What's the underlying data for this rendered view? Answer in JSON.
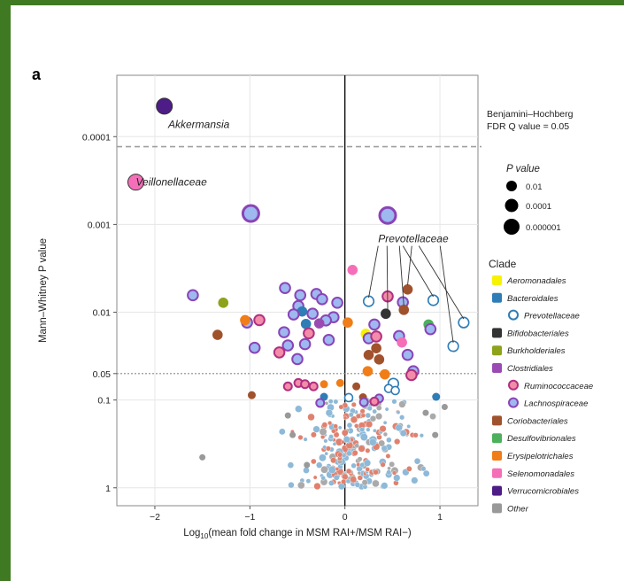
{
  "chart_data": {
    "type": "scatter",
    "panel_label": "a",
    "xlabel_prefix": "Log",
    "xlabel_sub": "10",
    "xlabel_rest": "(mean fold change in MSM RAI+/MSM RAI−)",
    "ylabel": "Mann–Whitney P value",
    "x_ticks": [
      "−2",
      "−1",
      "0",
      "1"
    ],
    "x_tick_values": [
      -2,
      -1,
      0,
      1
    ],
    "y_ticks": [
      "0.0001",
      "0.001",
      "0.01",
      "0.05",
      "0.1",
      "1"
    ],
    "y_tick_values": [
      0.0001,
      0.001,
      0.01,
      0.05,
      0.1,
      1
    ],
    "xlim": [
      -2.4,
      1.4
    ],
    "ylim_p": [
      2e-05,
      1.6
    ],
    "y_scale": "log (reversed)",
    "threshold_bh": {
      "p": 0.00013,
      "label_line1": "Benjamini–Hochberg",
      "label_line2": "FDR Q value = 0.05"
    },
    "threshold_p": 0.05,
    "pvalue_legend": {
      "title": "P value",
      "items": [
        "0.01",
        "0.0001",
        "0.000001"
      ]
    },
    "clade_legend_title": "Clade",
    "colors": {
      "Aeromonadales": "#f7f200",
      "Bacteroidales": "#2f7db6",
      "Bifidobacteriales": "#333333",
      "Burkholderiales": "#8ea21a",
      "Clostridiales": "#9a4bb3",
      "Coriobacteriales": "#a0522d",
      "Desulfovibrionales": "#4db05c",
      "Erysipelotrichales": "#f07d18",
      "Selenomonadales": "#f46fb8",
      "Verrucomicrobiales": "#4d1c86",
      "Other": "#999999",
      "Ruminococcaceae_fill": "#f28ca8",
      "Ruminococcaceae_ring": "#b03080",
      "Lachnospiraceae_fill": "#9eb8f0",
      "Lachnospiraceae_ring": "#8a44b6",
      "Prevotellaceae_ring": "#2f7db6",
      "cloud_blue": "#8eb9d8",
      "cloud_red": "#e0816e",
      "cloud_grey": "#aaaaaa"
    },
    "clades": [
      {
        "name": "Aeromonadales",
        "style": "solid"
      },
      {
        "name": "Bacteroidales",
        "style": "solid"
      },
      {
        "name": "Prevotellaceae",
        "style": "ring",
        "sub": true
      },
      {
        "name": "Bifidobacteriales",
        "style": "solid"
      },
      {
        "name": "Burkholderiales",
        "style": "solid"
      },
      {
        "name": "Clostridiales",
        "style": "solid"
      },
      {
        "name": "Ruminococcaceae",
        "style": "ringfill",
        "sub": true
      },
      {
        "name": "Lachnospiraceae",
        "style": "ringfill",
        "sub": true
      },
      {
        "name": "Coriobacteriales",
        "style": "solid"
      },
      {
        "name": "Desulfovibrionales",
        "style": "solid"
      },
      {
        "name": "Erysipelotrichales",
        "style": "solid"
      },
      {
        "name": "Selenomonadales",
        "style": "solid"
      },
      {
        "name": "Verrucomicrobiales",
        "style": "solid"
      },
      {
        "name": "Other",
        "style": "solid"
      }
    ],
    "labels": [
      {
        "text": "Akkermansia",
        "x": -1.86,
        "p": 8e-05
      },
      {
        "text": "Veillonellaceae",
        "x": -2.2,
        "p": 0.00036
      },
      {
        "text": "Prevotellaceae",
        "x": 0.35,
        "p": 0.0016
      }
    ],
    "points": [
      {
        "x": -1.9,
        "p": 4.5e-05,
        "c": "Verrucomicrobiales",
        "s": "lg"
      },
      {
        "x": -2.2,
        "p": 0.00033,
        "c": "Selenomonadales",
        "s": "lg"
      },
      {
        "x": -0.99,
        "p": 0.00075,
        "c": "Lachnospiraceae",
        "s": "lg"
      },
      {
        "x": 0.45,
        "p": 0.00079,
        "c": "Lachnospiraceae",
        "s": "lg"
      },
      {
        "x": 0.08,
        "p": 0.0033,
        "c": "Selenomonadales",
        "s": "md"
      },
      {
        "x": -1.6,
        "p": 0.0064,
        "c": "Lachnospiraceae",
        "s": "md"
      },
      {
        "x": -1.28,
        "p": 0.0078,
        "c": "Burkholderiales",
        "s": "md"
      },
      {
        "x": -0.63,
        "p": 0.0053,
        "c": "Lachnospiraceae",
        "s": "md"
      },
      {
        "x": -0.47,
        "p": 0.0064,
        "c": "Lachnospiraceae",
        "s": "md"
      },
      {
        "x": -0.3,
        "p": 0.0062,
        "c": "Lachnospiraceae",
        "s": "md"
      },
      {
        "x": -0.24,
        "p": 0.0071,
        "c": "Lachnospiraceae",
        "s": "md"
      },
      {
        "x": -0.08,
        "p": 0.0078,
        "c": "Lachnospiraceae",
        "s": "md"
      },
      {
        "x": -0.49,
        "p": 0.0085,
        "c": "Lachnospiraceae",
        "s": "md"
      },
      {
        "x": -0.45,
        "p": 0.0098,
        "c": "Bacteroidales",
        "s": "md"
      },
      {
        "x": -0.54,
        "p": 0.0106,
        "c": "Lachnospiraceae",
        "s": "md"
      },
      {
        "x": -0.34,
        "p": 0.0104,
        "c": "Lachnospiraceae",
        "s": "md"
      },
      {
        "x": -0.12,
        "p": 0.0114,
        "c": "Lachnospiraceae",
        "s": "md"
      },
      {
        "x": -0.2,
        "p": 0.0124,
        "c": "Lachnospiraceae",
        "s": "md"
      },
      {
        "x": -0.27,
        "p": 0.0134,
        "c": "Clostridiales",
        "s": "md"
      },
      {
        "x": -0.41,
        "p": 0.0136,
        "c": "Bacteroidales",
        "s": "md"
      },
      {
        "x": -0.9,
        "p": 0.0123,
        "c": "Ruminococcaceae",
        "s": "md"
      },
      {
        "x": -1.03,
        "p": 0.0131,
        "c": "Lachnospiraceae",
        "s": "md"
      },
      {
        "x": -1.05,
        "p": 0.0123,
        "c": "Erysipelotrichales",
        "s": "md"
      },
      {
        "x": 0.03,
        "p": 0.0131,
        "c": "Erysipelotrichales",
        "s": "md"
      },
      {
        "x": -1.34,
        "p": 0.0181,
        "c": "Coriobacteriales",
        "s": "md"
      },
      {
        "x": -0.64,
        "p": 0.0169,
        "c": "Lachnospiraceae",
        "s": "md"
      },
      {
        "x": -0.38,
        "p": 0.0174,
        "c": "Ruminococcaceae",
        "s": "md"
      },
      {
        "x": -0.17,
        "p": 0.0207,
        "c": "Lachnospiraceae",
        "s": "md"
      },
      {
        "x": -0.6,
        "p": 0.0239,
        "c": "Lachnospiraceae",
        "s": "md"
      },
      {
        "x": -0.42,
        "p": 0.0231,
        "c": "Lachnospiraceae",
        "s": "md"
      },
      {
        "x": -0.69,
        "p": 0.0287,
        "c": "Ruminococcaceae",
        "s": "md"
      },
      {
        "x": -0.95,
        "p": 0.0254,
        "c": "Lachnospiraceae",
        "s": "md"
      },
      {
        "x": -0.5,
        "p": 0.0342,
        "c": "Lachnospiraceae",
        "s": "md"
      },
      {
        "x": 0.66,
        "p": 0.0055,
        "c": "Coriobacteriales",
        "s": "md"
      },
      {
        "x": 0.45,
        "p": 0.0066,
        "c": "Ruminococcaceae",
        "s": "md"
      },
      {
        "x": 0.61,
        "p": 0.0077,
        "c": "Lachnospiraceae",
        "s": "md"
      },
      {
        "x": 0.25,
        "p": 0.0075,
        "c": "Prevotellaceae",
        "s": "md"
      },
      {
        "x": 0.93,
        "p": 0.0073,
        "c": "Prevotellaceae",
        "s": "md"
      },
      {
        "x": 0.62,
        "p": 0.0094,
        "c": "Coriobacteriales",
        "s": "md"
      },
      {
        "x": 0.43,
        "p": 0.0104,
        "c": "Bifidobacteriales",
        "s": "md"
      },
      {
        "x": 1.25,
        "p": 0.0131,
        "c": "Prevotellaceae",
        "s": "md"
      },
      {
        "x": 0.88,
        "p": 0.0138,
        "c": "Desulfovibrionales",
        "s": "md"
      },
      {
        "x": 0.31,
        "p": 0.0138,
        "c": "Lachnospiraceae",
        "s": "md"
      },
      {
        "x": 0.9,
        "p": 0.0156,
        "c": "Lachnospiraceae",
        "s": "md"
      },
      {
        "x": 0.22,
        "p": 0.0176,
        "c": "Aeromonadales",
        "s": "md"
      },
      {
        "x": 0.25,
        "p": 0.0198,
        "c": "Lachnospiraceae",
        "s": "md"
      },
      {
        "x": 0.33,
        "p": 0.0189,
        "c": "Ruminococcaceae",
        "s": "md"
      },
      {
        "x": 0.57,
        "p": 0.0187,
        "c": "Lachnospiraceae",
        "s": "md"
      },
      {
        "x": 0.6,
        "p": 0.0221,
        "c": "Selenomonadales",
        "s": "md"
      },
      {
        "x": 1.14,
        "p": 0.0244,
        "c": "Prevotellaceae",
        "s": "md"
      },
      {
        "x": 0.25,
        "p": 0.0307,
        "c": "Coriobacteriales",
        "s": "md"
      },
      {
        "x": 0.33,
        "p": 0.0257,
        "c": "Coriobacteriales",
        "s": "md"
      },
      {
        "x": 0.66,
        "p": 0.0306,
        "c": "Lachnospiraceae",
        "s": "md"
      },
      {
        "x": 0.36,
        "p": 0.0345,
        "c": "Coriobacteriales",
        "s": "md"
      },
      {
        "x": 0.24,
        "p": 0.047,
        "c": "Erysipelotrichales",
        "s": "md"
      },
      {
        "x": 0.72,
        "p": 0.047,
        "c": "Lachnospiraceae",
        "s": "md"
      },
      {
        "x": 0.42,
        "p": 0.051,
        "c": "Erysipelotrichales",
        "s": "md"
      },
      {
        "x": 0.7,
        "p": 0.052,
        "c": "Ruminococcaceae",
        "s": "md"
      },
      {
        "x": 0.51,
        "p": 0.065,
        "c": "Prevotellaceae",
        "s": "md"
      },
      {
        "x": -0.05,
        "p": 0.064,
        "c": "Erysipelotrichales",
        "s": "sm"
      },
      {
        "x": -0.22,
        "p": 0.066,
        "c": "Erysipelotrichales",
        "s": "sm"
      },
      {
        "x": -0.49,
        "p": 0.064,
        "c": "Ruminococcaceae",
        "s": "sm"
      },
      {
        "x": -0.42,
        "p": 0.066,
        "c": "Ruminococcaceae",
        "s": "sm"
      },
      {
        "x": -0.33,
        "p": 0.07,
        "c": "Ruminococcaceae",
        "s": "sm"
      },
      {
        "x": -0.6,
        "p": 0.07,
        "c": "Ruminococcaceae",
        "s": "sm"
      },
      {
        "x": 0.12,
        "p": 0.07,
        "c": "Coriobacteriales",
        "s": "sm"
      },
      {
        "x": 0.46,
        "p": 0.074,
        "c": "Prevotellaceae",
        "s": "sm"
      },
      {
        "x": 0.53,
        "p": 0.078,
        "c": "Prevotellaceae",
        "s": "sm"
      },
      {
        "x": -0.22,
        "p": 0.092,
        "c": "Bacteroidales",
        "s": "sm"
      },
      {
        "x": -0.98,
        "p": 0.088,
        "c": "Coriobacteriales",
        "s": "sm"
      },
      {
        "x": 0.96,
        "p": 0.092,
        "c": "Bacteroidales",
        "s": "sm"
      },
      {
        "x": 0.19,
        "p": 0.093,
        "c": "Coriobacteriales",
        "s": "sm"
      },
      {
        "x": 0.04,
        "p": 0.094,
        "c": "Prevotellaceae",
        "s": "sm"
      },
      {
        "x": 0.36,
        "p": 0.096,
        "c": "Lachnospiraceae",
        "s": "sm"
      },
      {
        "x": 0.31,
        "p": 0.104,
        "c": "Ruminococcaceae",
        "s": "sm"
      },
      {
        "x": 0.2,
        "p": 0.106,
        "c": "Lachnospiraceae",
        "s": "sm"
      },
      {
        "x": -0.26,
        "p": 0.108,
        "c": "Lachnospiraceae",
        "s": "sm"
      }
    ],
    "cloud_count": 260,
    "cloud_note": "dense cloud of non-significant taxa, x between about -0.8 and 1.1, p between about 0.1 and 1"
  }
}
